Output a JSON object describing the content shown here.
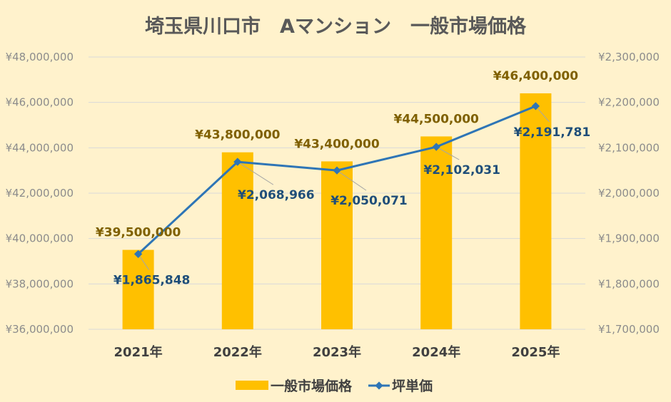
{
  "chart_data": {
    "type": "bar+line",
    "title": "埼玉県川口市　Aマンション　一般市場価格",
    "categories": [
      "2021年",
      "2022年",
      "2023年",
      "2024年",
      "2025年"
    ],
    "series": [
      {
        "name": "一般市場価格",
        "type": "bar",
        "axis": "left",
        "color": "#FFC000",
        "values": [
          39500000,
          43800000,
          43400000,
          44500000,
          46400000
        ],
        "labels": [
          "¥39,500,000",
          "¥43,800,000",
          "¥43,400,000",
          "¥44,500,000",
          "¥46,400,000"
        ]
      },
      {
        "name": "坪単価",
        "type": "line",
        "axis": "right",
        "color": "#2E75B6",
        "values": [
          1865848,
          2068966,
          2050071,
          2102031,
          2191781
        ],
        "labels": [
          "¥1,865,848",
          "¥2,068,966",
          "¥2,050,071",
          "¥2,102,031",
          "¥2,191,781"
        ]
      }
    ],
    "left_axis": {
      "min": 36000000,
      "max": 48000000,
      "step": 2000000,
      "tick_labels": [
        "¥36,000,000",
        "¥38,000,000",
        "¥40,000,000",
        "¥42,000,000",
        "¥44,000,000",
        "¥46,000,000",
        "¥48,000,000"
      ]
    },
    "right_axis": {
      "min": 1700000,
      "max": 2300000,
      "step": 100000,
      "tick_labels": [
        "¥1,700,000",
        "¥1,800,000",
        "¥1,900,000",
        "¥2,000,000",
        "¥2,100,000",
        "¥2,200,000",
        "¥2,300,000"
      ]
    },
    "grid": true,
    "legend": "bottom"
  }
}
